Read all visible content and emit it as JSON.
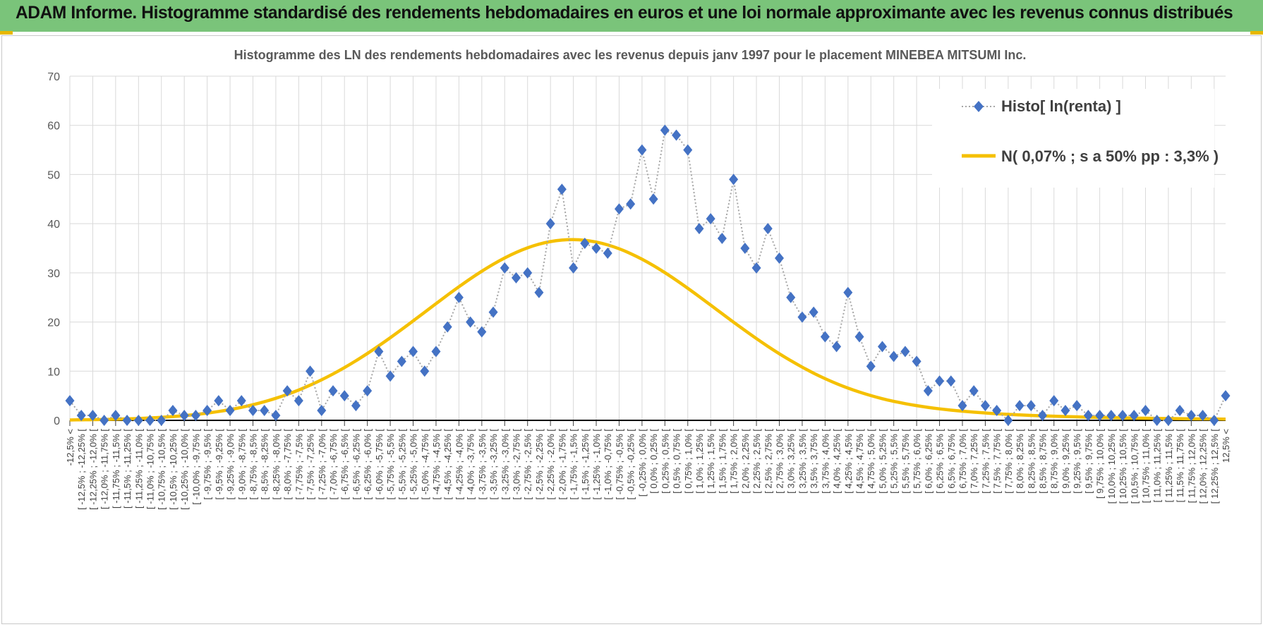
{
  "banner": {
    "title": "ADAM Informe. Histogramme standardisé des rendements hebdomadaires en euros et une loi normale approximante avec les revenus connus distribués"
  },
  "colors": {
    "banner_bg": "#7ac47a",
    "accent": "#e8b800",
    "series_histo": "#4472c4",
    "series_normal": "#f5c000"
  },
  "chart_data": {
    "type": "line",
    "title": "Histogramme  des LN des rendements hebdomadaires avec les revenus depuis janv 1997 pour le placement MINEBEA MITSUMI Inc.",
    "ylim": [
      0,
      70
    ],
    "yticks": [
      0,
      10,
      20,
      30,
      40,
      50,
      60,
      70
    ],
    "grid": true,
    "legend_position": "top-right",
    "categories": [
      "-12,5% <",
      "[ -12,5% ; -12,25% [",
      "[ -12,25% ; -12,0% [",
      "[ -12,0% ; -11,75% [",
      "[ -11,75% ; -11,5% [",
      "[ -11,5% ; -11,25% [",
      "[ -11,25% ; -11,0% [",
      "[ -11,0% ; -10,75% [",
      "[ -10,75% ; -10,5% [",
      "[ -10,5% ; -10,25% [",
      "[ -10,25% ; -10,0% [",
      "[ -10,0% ; -9,75% [",
      "[ -9,75% ; -9,5% [",
      "[ -9,5% ; -9,25% [",
      "[ -9,25% ; -9,0% [",
      "[ -9,0% ; -8,75% [",
      "[ -8,75% ; -8,5% [",
      "[ -8,5% ; -8,25% [",
      "[ -8,25% ; -8,0% [",
      "[ -8,0% ; -7,75% [",
      "[ -7,75% ; -7,5% [",
      "[ -7,5% ; -7,25% [",
      "[ -7,25% ; -7,0% [",
      "[ -7,0% ; -6,75% [",
      "[ -6,75% ; -6,5% [",
      "[ -6,5% ; -6,25% [",
      "[ -6,25% ; -6,0% [",
      "[ -6,0% ; -5,75% [",
      "[ -5,75% ; -5,5% [",
      "[ -5,5% ; -5,25% [",
      "[ -5,25% ; -5,0% [",
      "[ -5,0% ; -4,75% [",
      "[ -4,75% ; -4,5% [",
      "[ -4,5% ; -4,25% [",
      "[ -4,25% ; -4,0% [",
      "[ -4,0% ; -3,75% [",
      "[ -3,75% ; -3,5% [",
      "[ -3,5% ; -3,25% [",
      "[ -3,25% ; -3,0% [",
      "[ -3,0% ; -2,75% [",
      "[ -2,75% ; -2,5% [",
      "[ -2,5% ; -2,25% [",
      "[ -2,25% ; -2,0% [",
      "[ -2,0% ; -1,75% [",
      "[ -1,75% ; -1,5% [",
      "[ -1,5% ; -1,25% [",
      "[ -1,25% ; -1,0% [",
      "[ -1,0% ; -0,75% [",
      "[ -0,75% ; -0,5% [",
      "[ -0,5% ; -0,25% [",
      "[ -0,25% ; 0,0% [",
      "[ 0,0% ; 0,25% [",
      "[ 0,25% ; 0,5% [",
      "[ 0,5% ; 0,75% [",
      "[ 0,75% ; 1,0% [",
      "[ 1,0% ; 1,25% [",
      "[ 1,25% ; 1,5% [",
      "[ 1,5% ; 1,75% [",
      "[ 1,75% ; 2,0% [",
      "[ 2,0% ; 2,25% [",
      "[ 2,25% ; 2,5% [",
      "[ 2,5% ; 2,75% [",
      "[ 2,75% ; 3,0% [",
      "[ 3,0% ; 3,25% [",
      "[ 3,25% ; 3,5% [",
      "[ 3,5% ; 3,75% [",
      "[ 3,75% ; 4,0% [",
      "[ 4,0% ; 4,25% [",
      "[ 4,25% ; 4,5% [",
      "[ 4,5% ; 4,75% [",
      "[ 4,75% ; 5,0% [",
      "[ 5,0% ; 5,25% [",
      "[ 5,25% ; 5,5% [",
      "[ 5,5% ; 5,75% [",
      "[ 5,75% ; 6,0% [",
      "[ 6,0% ; 6,25% [",
      "[ 6,25% ; 6,5% [",
      "[ 6,5% ; 6,75% [",
      "[ 6,75% ; 7,0% [",
      "[ 7,0% ; 7,25% [",
      "[ 7,25% ; 7,5% [",
      "[ 7,5% ; 7,75% [",
      "[ 7,75% ; 8,0% [",
      "[ 8,0% ; 8,25% [",
      "[ 8,25% ; 8,5% [",
      "[ 8,5% ; 8,75% [",
      "[ 8,75% ; 9,0% [",
      "[ 9,0% ; 9,25% [",
      "[ 9,25% ; 9,5% [",
      "[ 9,5% ; 9,75% [",
      "[ 9,75% ; 10,0% [",
      "[ 10,0% ; 10,25% [",
      "[ 10,25% ; 10,5% [",
      "[ 10,5% ; 10,75% [",
      "[ 10,75% ; 11,0% [",
      "[ 11,0% ; 11,25% [",
      "[ 11,25% ; 11,5% [",
      "[ 11,5% ; 11,75% [",
      "[ 11,75% ; 12,0% [",
      "[ 12,0% ; 12,25% [",
      "[ 12,25% ; 12,5% [",
      "12,5% <"
    ],
    "series": [
      {
        "name": "Histo[ ln(renta) ]",
        "style": "dotted-marker",
        "values": [
          4,
          1,
          1,
          0,
          1,
          0,
          0,
          0,
          0,
          2,
          1,
          1,
          2,
          4,
          2,
          4,
          2,
          2,
          1,
          6,
          4,
          10,
          2,
          6,
          5,
          3,
          6,
          14,
          9,
          12,
          14,
          10,
          14,
          19,
          25,
          20,
          18,
          22,
          31,
          29,
          30,
          26,
          40,
          47,
          31,
          36,
          35,
          34,
          43,
          44,
          55,
          45,
          59,
          58,
          55,
          39,
          41,
          37,
          49,
          35,
          31,
          39,
          33,
          25,
          21,
          22,
          17,
          15,
          26,
          17,
          11,
          15,
          13,
          14,
          12,
          6,
          8,
          8,
          3,
          6,
          3,
          2,
          0,
          3,
          3,
          1,
          4,
          2,
          3,
          1,
          1,
          1,
          1,
          1,
          2,
          0,
          0,
          2,
          1,
          1,
          0,
          5
        ]
      },
      {
        "name": "N( 0,07% ; s a 50% pp : 3,3% )",
        "style": "smooth-line",
        "values": [
          0.08,
          0.11,
          0.14,
          0.18,
          0.23,
          0.3,
          0.38,
          0.48,
          0.61,
          0.77,
          0.96,
          1.19,
          1.47,
          1.8,
          2.19,
          2.65,
          3.18,
          3.79,
          4.49,
          5.28,
          6.17,
          7.16,
          8.25,
          9.44,
          10.73,
          12.12,
          13.6,
          15.17,
          16.8,
          18.49,
          20.23,
          21.98,
          23.74,
          25.48,
          27.17,
          28.8,
          30.33,
          31.75,
          33.03,
          34.15,
          35.09,
          35.83,
          36.36,
          36.67,
          36.76,
          36.62,
          36.26,
          35.68,
          34.9,
          33.92,
          32.77,
          31.47,
          30.04,
          28.49,
          26.86,
          25.17,
          23.44,
          21.7,
          19.97,
          18.28,
          16.63,
          15.05,
          13.55,
          12.14,
          10.82,
          9.6,
          8.48,
          7.47,
          6.56,
          5.75,
          5.04,
          4.41,
          3.87,
          3.4,
          2.99,
          2.64,
          2.34,
          2.08,
          1.86,
          1.67,
          1.5,
          1.35,
          1.22,
          1.11,
          1.01,
          0.92,
          0.84,
          0.77,
          0.71,
          0.65,
          0.6,
          0.55,
          0.51,
          0.47,
          0.43,
          0.4,
          0.37,
          0.34,
          0.31,
          0.29,
          0.27,
          0.25
        ]
      }
    ]
  }
}
